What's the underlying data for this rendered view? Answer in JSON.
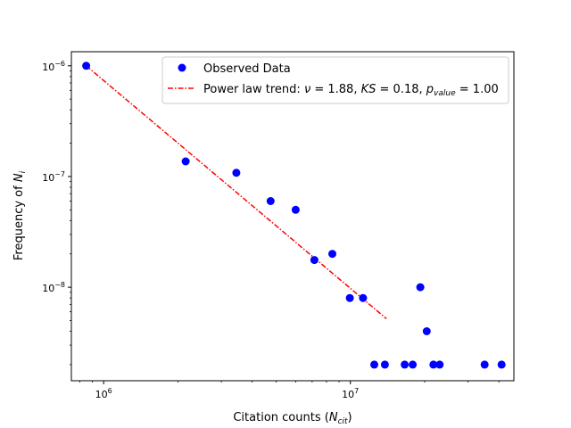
{
  "chart_data": {
    "type": "scatter",
    "xscale": "log",
    "yscale": "log",
    "xlim": [
      740000,
      46000000
    ],
    "ylim": [
      1.43e-09,
      1.34e-06
    ],
    "xlabel": "Citation counts",
    "xlabel_sub": "cit",
    "ylabel": "Frequency of",
    "ylabel_sub": "i",
    "x_ticks": [
      {
        "value": 1000000,
        "base": "10",
        "exp": "6"
      },
      {
        "value": 10000000,
        "base": "10",
        "exp": "7"
      }
    ],
    "y_ticks": [
      {
        "value": 1e-08,
        "base": "10",
        "exp": "−8"
      },
      {
        "value": 1e-07,
        "base": "10",
        "exp": "−7"
      },
      {
        "value": 1e-06,
        "base": "10",
        "exp": "−6"
      }
    ],
    "series": [
      {
        "name": "Observed Data",
        "kind": "points",
        "color": "#0000ff",
        "points": [
          {
            "x": 850000,
            "y": 1e-06
          },
          {
            "x": 2150000,
            "y": 1.37e-07
          },
          {
            "x": 3450000,
            "y": 1.08e-07
          },
          {
            "x": 4750000,
            "y": 6e-08
          },
          {
            "x": 6000000,
            "y": 5e-08
          },
          {
            "x": 7150000,
            "y": 1.76e-08
          },
          {
            "x": 8450000,
            "y": 2e-08
          },
          {
            "x": 9950000,
            "y": 8e-09
          },
          {
            "x": 11250000,
            "y": 8e-09
          },
          {
            "x": 12500000,
            "y": 2e-09
          },
          {
            "x": 13800000,
            "y": 2e-09
          },
          {
            "x": 16600000,
            "y": 2e-09
          },
          {
            "x": 17900000,
            "y": 2e-09
          },
          {
            "x": 19200000,
            "y": 1e-08
          },
          {
            "x": 20400000,
            "y": 4e-09
          },
          {
            "x": 21700000,
            "y": 2e-09
          },
          {
            "x": 23000000,
            "y": 2e-09
          },
          {
            "x": 35000000,
            "y": 2e-09
          },
          {
            "x": 41000000,
            "y": 2e-09
          }
        ]
      },
      {
        "name": "Power law trend",
        "kind": "line",
        "color": "#ff0000",
        "points": [
          {
            "x": 850000,
            "y": 1e-06
          },
          {
            "x": 14000000,
            "y": 5.2e-09
          }
        ]
      }
    ],
    "legend": {
      "position": "top-right",
      "observed_label": "Observed Data",
      "trend_label_prefix": "Power law trend: ",
      "nu_symbol": "ν",
      "nu_value": "1.88",
      "ks_symbol": "KS",
      "ks_value": "0.18",
      "p_symbol": "p",
      "p_sub": "value",
      "p_value": "1.00"
    }
  }
}
